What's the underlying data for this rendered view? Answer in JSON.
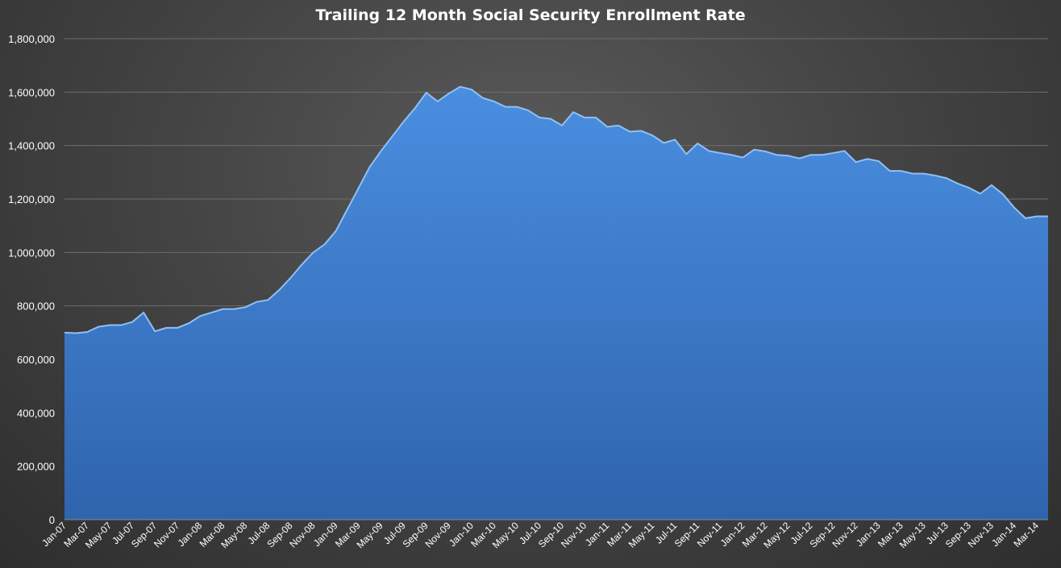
{
  "chart_data": {
    "type": "area",
    "title": "Trailing 12 Month Social Security Enrollment Rate",
    "xlabel": "",
    "ylabel": "",
    "ylim": [
      0,
      1800000
    ],
    "yticks": [
      "0",
      "200,000",
      "400,000",
      "600,000",
      "800,000",
      "1,000,000",
      "1,200,000",
      "1,400,000",
      "1,600,000",
      "1,800,000"
    ],
    "grid": true,
    "legend": "none",
    "colors": {
      "fill_top": "#4a8ee0",
      "fill_bottom": "#2f64ad",
      "line": "#8fc0f5"
    },
    "x": [
      "Jan-07",
      "Feb-07",
      "Mar-07",
      "Apr-07",
      "May-07",
      "Jun-07",
      "Jul-07",
      "Aug-07",
      "Sep-07",
      "Oct-07",
      "Nov-07",
      "Dec-07",
      "Jan-08",
      "Feb-08",
      "Mar-08",
      "Apr-08",
      "May-08",
      "Jun-08",
      "Jul-08",
      "Aug-08",
      "Sep-08",
      "Oct-08",
      "Nov-08",
      "Dec-08",
      "Jan-09",
      "Feb-09",
      "Mar-09",
      "Apr-09",
      "May-09",
      "Jun-09",
      "Jul-09",
      "Aug-09",
      "Sep-09",
      "Oct-09",
      "Nov-09",
      "Dec-09",
      "Jan-10",
      "Feb-10",
      "Mar-10",
      "Apr-10",
      "May-10",
      "Jun-10",
      "Jul-10",
      "Aug-10",
      "Sep-10",
      "Oct-10",
      "Nov-10",
      "Dec-10",
      "Jan-11",
      "Feb-11",
      "Mar-11",
      "Apr-11",
      "May-11",
      "Jun-11",
      "Jul-11",
      "Aug-11",
      "Sep-11",
      "Oct-11",
      "Nov-11",
      "Dec-11",
      "Jan-12",
      "Feb-12",
      "Mar-12",
      "Apr-12",
      "May-12",
      "Jun-12",
      "Jul-12",
      "Aug-12",
      "Sep-12",
      "Oct-12",
      "Nov-12",
      "Dec-12",
      "Jan-13",
      "Feb-13",
      "Mar-13",
      "Apr-13",
      "May-13",
      "Jun-13",
      "Jul-13",
      "Aug-13",
      "Sep-13",
      "Oct-13",
      "Nov-13",
      "Dec-13",
      "Jan-14",
      "Feb-14",
      "Mar-14",
      "Apr-14"
    ],
    "xtick_labels": [
      "Jan-07",
      "Mar-07",
      "May-07",
      "Jul-07",
      "Sep-07",
      "Nov-07",
      "Jan-08",
      "Mar-08",
      "May-08",
      "Jul-08",
      "Sep-08",
      "Nov-08",
      "Jan-09",
      "Mar-09",
      "May-09",
      "Jul-09",
      "Sep-09",
      "Nov-09",
      "Jan-10",
      "Mar-10",
      "May-10",
      "Jul-10",
      "Sep-10",
      "Nov-10",
      "Jan-11",
      "Mar-11",
      "May-11",
      "Jul-11",
      "Sep-11",
      "Nov-11",
      "Jan-12",
      "Mar-12",
      "May-12",
      "Jul-12",
      "Sep-12",
      "Nov-12",
      "Jan-13",
      "Mar-13",
      "May-13",
      "Jul-13",
      "Sep-13",
      "Nov-13",
      "Jan-14",
      "Mar-14"
    ],
    "values": [
      700000,
      698000,
      702000,
      722000,
      728000,
      728000,
      740000,
      775000,
      705000,
      718000,
      718000,
      735000,
      762000,
      775000,
      788000,
      788000,
      795000,
      815000,
      822000,
      860000,
      905000,
      955000,
      1000000,
      1030000,
      1080000,
      1160000,
      1240000,
      1320000,
      1380000,
      1435000,
      1490000,
      1540000,
      1598000,
      1565000,
      1595000,
      1620000,
      1610000,
      1578000,
      1565000,
      1545000,
      1545000,
      1532000,
      1505000,
      1500000,
      1475000,
      1525000,
      1505000,
      1505000,
      1470000,
      1475000,
      1452000,
      1455000,
      1438000,
      1410000,
      1422000,
      1368000,
      1408000,
      1380000,
      1372000,
      1365000,
      1355000,
      1385000,
      1378000,
      1365000,
      1362000,
      1352000,
      1365000,
      1365000,
      1372000,
      1380000,
      1338000,
      1350000,
      1342000,
      1305000,
      1305000,
      1295000,
      1295000,
      1288000,
      1278000,
      1258000,
      1242000,
      1220000,
      1252000,
      1218000,
      1168000,
      1128000,
      1135000,
      1135000
    ]
  }
}
